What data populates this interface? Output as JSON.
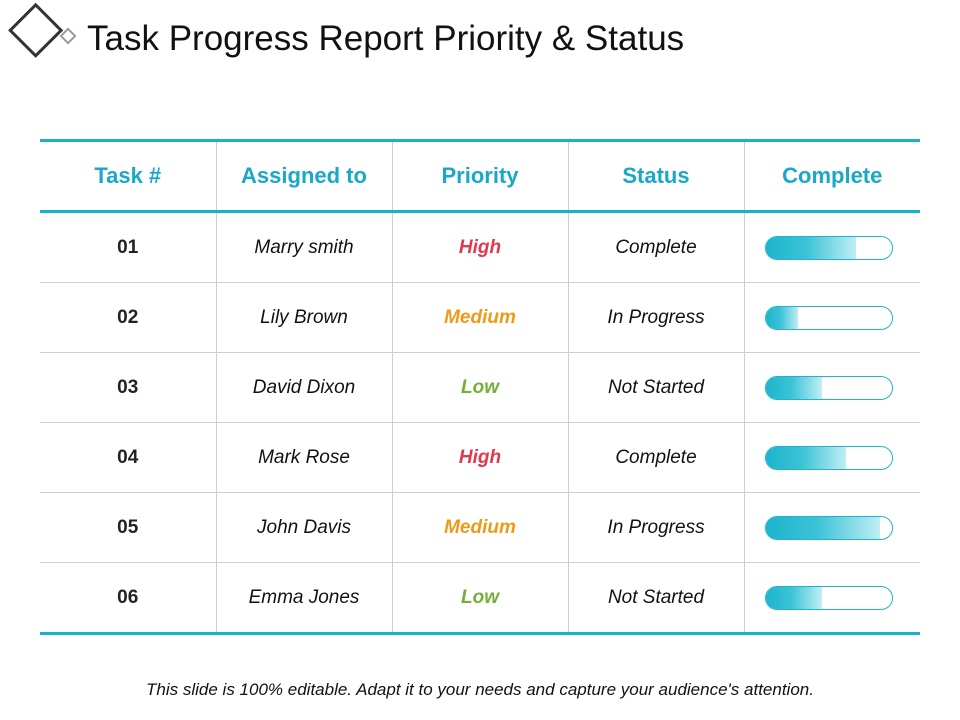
{
  "header": {
    "title": "Task Progress Report Priority & Status"
  },
  "table": {
    "columns": [
      "Task #",
      "Assigned to",
      "Priority",
      "Status",
      "Complete"
    ],
    "rows": [
      {
        "task": "01",
        "assigned": "Marry smith",
        "priority": "High",
        "priority_level": "high",
        "status": "Complete",
        "complete_fraction": 0.72
      },
      {
        "task": "02",
        "assigned": "Lily Brown",
        "priority": "Medium",
        "priority_level": "medium",
        "status": "In Progress",
        "complete_fraction": 0.26
      },
      {
        "task": "03",
        "assigned": "David Dixon",
        "priority": "Low",
        "priority_level": "low",
        "status": "Not Started",
        "complete_fraction": 0.45
      },
      {
        "task": "04",
        "assigned": "Mark Rose",
        "priority": "High",
        "priority_level": "high",
        "status": "Complete",
        "complete_fraction": 0.64
      },
      {
        "task": "05",
        "assigned": "John Davis",
        "priority": "Medium",
        "priority_level": "medium",
        "status": "In Progress",
        "complete_fraction": 0.91
      },
      {
        "task": "06",
        "assigned": "Emma  Jones",
        "priority": "Low",
        "priority_level": "low",
        "status": "Not Started",
        "complete_fraction": 0.45
      }
    ]
  },
  "colors": {
    "accent": "#17b3cc",
    "high": "#e2384d",
    "medium": "#ef9a17",
    "low": "#74ae3c"
  },
  "logo": {
    "icon": "double-diamond-icon"
  },
  "footer": {
    "note": "This slide is 100% editable. Adapt it to your needs and capture your audience's attention."
  }
}
